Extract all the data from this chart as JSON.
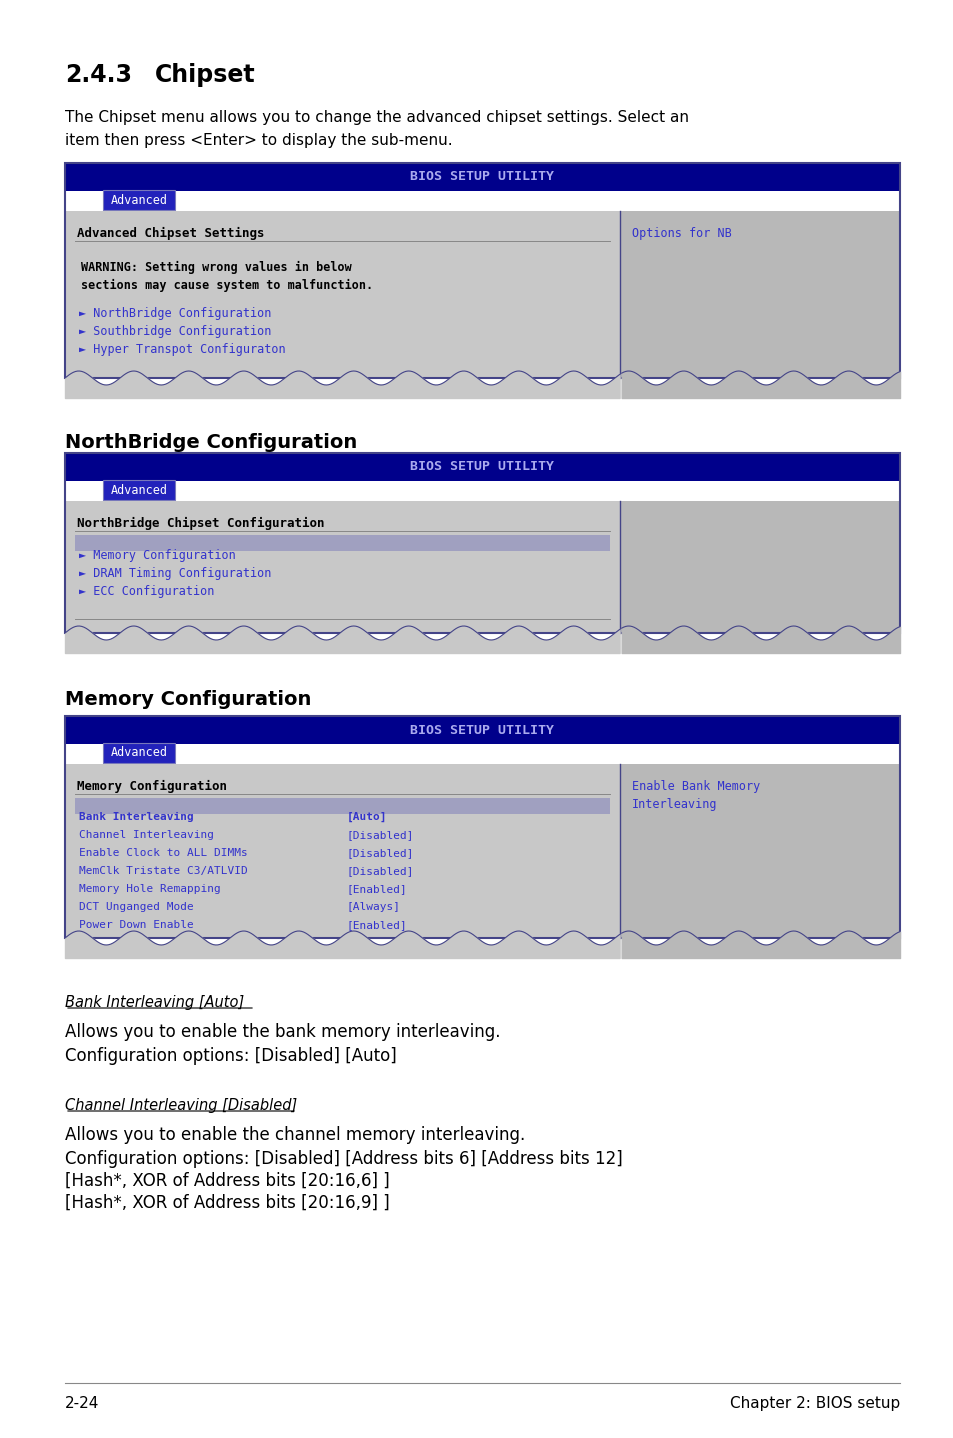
{
  "page_bg": "#ffffff",
  "section_title_num": "2.4.3",
  "section_title_name": "Chipset",
  "section_desc": "The Chipset menu allows you to change the advanced chipset settings. Select an\nitem then press <Enter> to display the sub-menu.",
  "bios_header_color": "#00008b",
  "bios_header_text": "BIOS SETUP UTILITY",
  "tab_text": "Advanced",
  "screen_bg": "#c8c8c8",
  "right_panel_bg": "#b8b8b8",
  "blue_text": "#3333cc",
  "screen1_title_left": "Advanced Chipset Settings",
  "screen1_title_right": "Options for NB",
  "screen1_warning": "WARNING: Setting wrong values in below\nsections may cause system to malfunction.",
  "screen1_items": [
    "► NorthBridge Configuration",
    "► Southbridge Configuration",
    "► Hyper Transpot Configuraton"
  ],
  "northbridge_heading": "NorthBridge Configuration",
  "screen2_title": "NorthBridge Chipset Configuration",
  "screen2_items": [
    "► Memory Configuration",
    "► DRAM Timing Configuration",
    "► ECC Configuration"
  ],
  "memory_heading": "Memory Configuration",
  "screen3_title_left": "Memory Configuration",
  "screen3_title_right": "Enable Bank Memory\nInterleaving",
  "screen3_rows": [
    [
      "Bank Interleaving",
      "[Auto]"
    ],
    [
      "Channel Interleaving",
      "[Disabled]"
    ],
    [
      "Enable Clock to ALL DIMMs",
      "[Disabled]"
    ],
    [
      "MemClk Tristate C3/ATLVID",
      "[Disabled]"
    ],
    [
      "Memory Hole Remapping",
      "[Enabled]"
    ],
    [
      "DCT Unganged Mode",
      "[Always]"
    ],
    [
      "Power Down Enable",
      "[Enabled]"
    ]
  ],
  "bank_title": "Bank Interleaving [Auto]",
  "bank_body1": "Allows you to enable the bank memory interleaving.",
  "bank_body2": "Configuration options: [Disabled] [Auto]",
  "channel_title": "Channel Interleaving [Disabled]",
  "channel_body1": "Allows you to enable the channel memory interleaving.",
  "channel_body2": "Configuration options: [Disabled] [Address bits 6] [Address bits 12]",
  "channel_body3": "[Hash*, XOR of Address bits [20:16,6] ]",
  "channel_body4": "[Hash*, XOR of Address bits [20:16,9] ]",
  "footer_left": "2-24",
  "footer_right": "Chapter 2: BIOS setup"
}
